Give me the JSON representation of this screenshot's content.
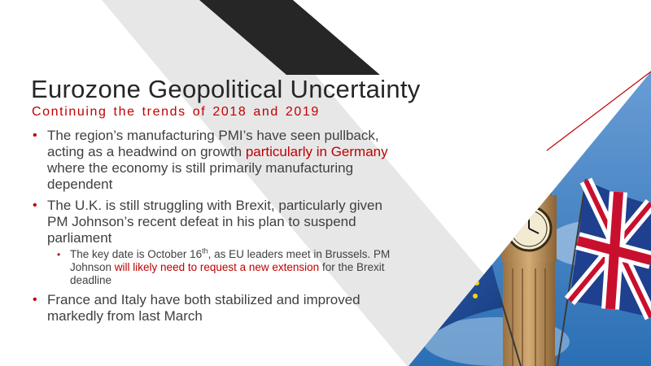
{
  "slide": {
    "title": "Eurozone Geopolitical Uncertainty",
    "subtitle": "Continuing the trends of 2018 and 2019",
    "bullet_marker": "•",
    "bullets": [
      {
        "text_1": "The region’s manufacturing PMI’s have seen pullback, acting as a headwind on growth ",
        "highlight": "particularly in Germany",
        "text_2": " where the economy is still primarily manufacturing dependent"
      },
      {
        "text": "The U.K. is still struggling with Brexit, particularly given PM Johnson’s recent defeat in his plan to suspend parliament",
        "sub": {
          "text_1": "The key date is October 16",
          "superscript": "th",
          "text_2": ", as EU leaders meet in Brussels. PM Johnson ",
          "highlight": "will likely need to request a new extension",
          "text_3": " for the Brexit deadline"
        }
      },
      {
        "text": "France and Italy have both stabilized and improved markedly from last March"
      }
    ]
  },
  "colors": {
    "accent": "#c00000",
    "text": "#404040",
    "title": "#262626",
    "dark_band": "#262626",
    "gray_band": "#e7e7e7"
  },
  "image": {
    "icons": [
      "big-ben-clock-tower",
      "eu-flag",
      "union-jack-flag"
    ]
  }
}
